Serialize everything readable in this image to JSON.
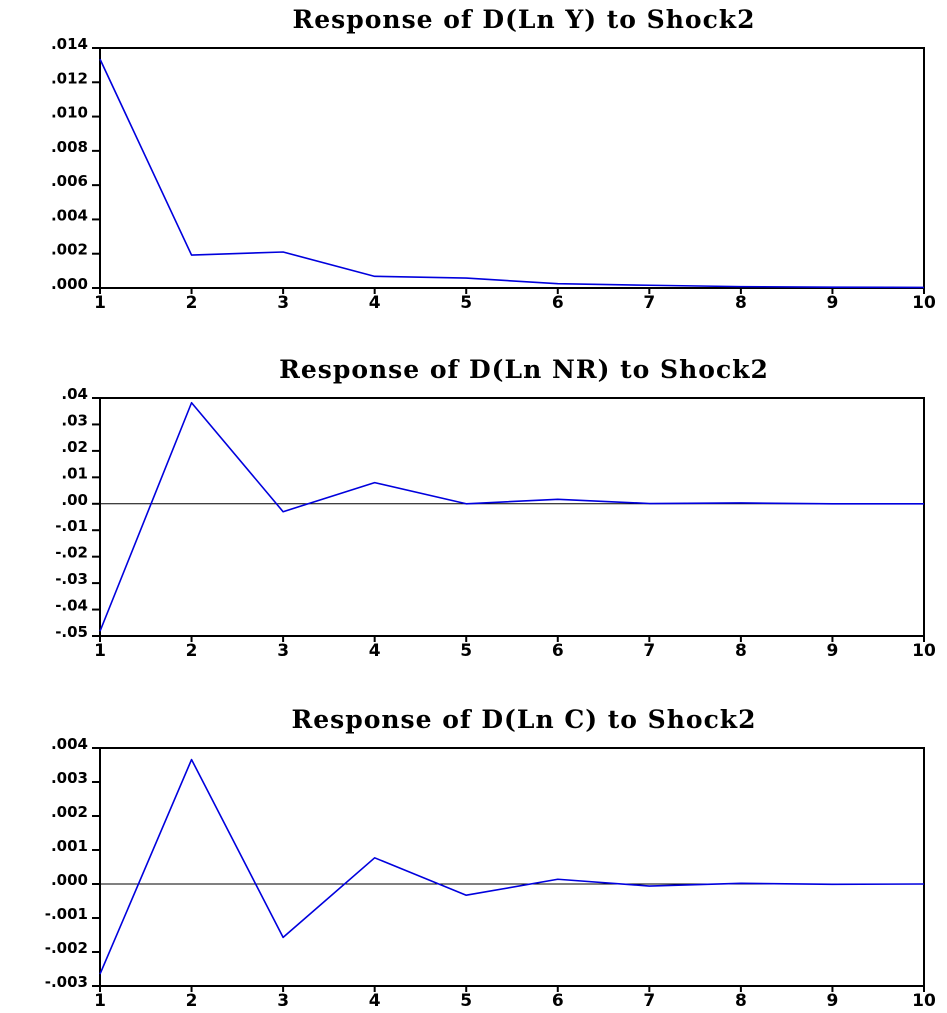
{
  "chart_data": [
    {
      "type": "line",
      "title": "Response of D(Ln Y) to Shock2",
      "x": [
        1,
        2,
        3,
        4,
        5,
        6,
        7,
        8,
        9,
        10
      ],
      "x_tick_labels": [
        "1",
        "2",
        "3",
        "4",
        "5",
        "6",
        "7",
        "8",
        "9",
        "10"
      ],
      "series": [
        {
          "values": [
            0.01335,
            0.00192,
            0.0021,
            0.00068,
            0.00058,
            0.00025,
            0.00016,
            8e-05,
            5e-05,
            3e-05
          ]
        }
      ],
      "ylim": [
        0,
        0.014
      ],
      "y_ticks": [
        0.014,
        0.012,
        0.01,
        0.008,
        0.006,
        0.004,
        0.002,
        0.0
      ],
      "y_tick_labels": [
        ".014",
        ".012",
        ".010",
        ".008",
        ".006",
        ".004",
        ".002",
        ".000"
      ],
      "zero_line": false,
      "grid": false,
      "line_color": "#0000dd"
    },
    {
      "type": "line",
      "title": "Response of D(Ln NR) to Shock2",
      "x": [
        1,
        2,
        3,
        4,
        5,
        6,
        7,
        8,
        9,
        10
      ],
      "x_tick_labels": [
        "1",
        "2",
        "3",
        "4",
        "5",
        "6",
        "7",
        "8",
        "9",
        "10"
      ],
      "series": [
        {
          "values": [
            -0.0482,
            0.0382,
            -0.003,
            0.008,
            0.0,
            0.0017,
            0.0001,
            0.0003,
            0.0,
            0.0
          ]
        }
      ],
      "ylim": [
        -0.05,
        0.04
      ],
      "y_ticks": [
        0.04,
        0.03,
        0.02,
        0.01,
        0.0,
        -0.01,
        -0.02,
        -0.03,
        -0.04,
        -0.05
      ],
      "y_tick_labels": [
        ".04",
        ".03",
        ".02",
        ".01",
        ".00",
        "-.01",
        "-.02",
        "-.03",
        "-.04",
        "-.05"
      ],
      "zero_line": true,
      "grid": false,
      "line_color": "#0000dd"
    },
    {
      "type": "line",
      "title": "Response of D(Ln C) to Shock2",
      "x": [
        1,
        2,
        3,
        4,
        5,
        6,
        7,
        8,
        9,
        10
      ],
      "x_tick_labels": [
        "1",
        "2",
        "3",
        "4",
        "5",
        "6",
        "7",
        "8",
        "9",
        "10"
      ],
      "series": [
        {
          "values": [
            -0.00265,
            0.00366,
            -0.00157,
            0.00077,
            -0.00033,
            0.00014,
            -6e-05,
            2e-05,
            -1e-05,
            0.0
          ]
        }
      ],
      "ylim": [
        -0.003,
        0.004
      ],
      "y_ticks": [
        0.004,
        0.003,
        0.002,
        0.001,
        0.0,
        -0.001,
        -0.002,
        -0.003
      ],
      "y_tick_labels": [
        ".004",
        ".003",
        ".002",
        ".001",
        ".000",
        "-.001",
        "-.002",
        "-.003"
      ],
      "zero_line": true,
      "grid": false,
      "line_color": "#0000dd"
    }
  ]
}
